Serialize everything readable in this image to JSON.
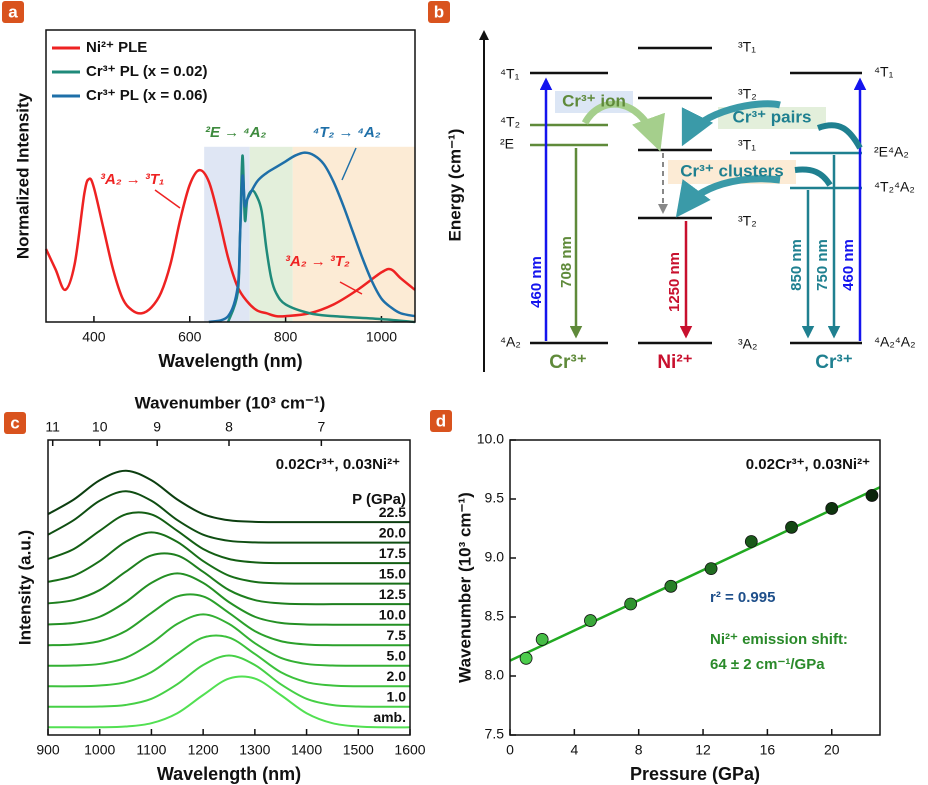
{
  "panels": [
    "a",
    "b",
    "c",
    "d"
  ],
  "chart_data": [
    {
      "type": "line",
      "x_label": "Wavelength (nm)",
      "y_label": "Normalized Intensity",
      "xlim": [
        300,
        1070
      ],
      "ylim": [
        0,
        1
      ],
      "xticks": [
        400,
        600,
        800,
        1000
      ],
      "regions": [
        {
          "x": [
            630,
            725
          ],
          "y": [
            0,
            0.6
          ],
          "color": "#dfe6f4"
        },
        {
          "x": [
            725,
            815
          ],
          "y": [
            0,
            0.6
          ],
          "color": "#e3efdb"
        },
        {
          "x": [
            815,
            1070
          ],
          "y": [
            0,
            0.6
          ],
          "color": "#fcebd5"
        }
      ],
      "series": [
        {
          "name": "Ni²⁺ PLE",
          "color": "#ee2222",
          "x": [
            300,
            320,
            340,
            360,
            380,
            390,
            400,
            420,
            440,
            460,
            480,
            500,
            520,
            540,
            560,
            580,
            600,
            620,
            640,
            660,
            680,
            700,
            720,
            740,
            760,
            780,
            800,
            850,
            900,
            950,
            1000,
            1020,
            1040,
            1070
          ],
          "values": [
            0.25,
            0.18,
            0.11,
            0.2,
            0.44,
            0.49,
            0.46,
            0.32,
            0.18,
            0.08,
            0.04,
            0.03,
            0.05,
            0.1,
            0.2,
            0.35,
            0.47,
            0.52,
            0.48,
            0.36,
            0.22,
            0.12,
            0.07,
            0.04,
            0.03,
            0.02,
            0.02,
            0.03,
            0.06,
            0.11,
            0.17,
            0.18,
            0.15,
            0.11
          ]
        },
        {
          "name": "Cr³⁺ PL (x = 0.02)",
          "color": "#1f8a7a",
          "x": [
            680,
            700,
            705,
            710,
            715,
            720,
            730,
            740,
            750,
            760,
            770,
            780,
            800,
            850,
            900,
            1000,
            1070
          ],
          "values": [
            0,
            0.1,
            0.3,
            0.57,
            0.35,
            0.42,
            0.45,
            0.43,
            0.38,
            0.25,
            0.15,
            0.1,
            0.06,
            0.03,
            0.02,
            0.01,
            0
          ]
        },
        {
          "name": "Cr³⁺ PL (x = 0.06)",
          "color": "#1e6fa8",
          "x": [
            640,
            680,
            700,
            705,
            710,
            715,
            720,
            740,
            760,
            780,
            800,
            820,
            840,
            860,
            880,
            900,
            920,
            940,
            960,
            980,
            1000,
            1020,
            1040,
            1070
          ],
          "values": [
            0,
            0.02,
            0.12,
            0.3,
            0.5,
            0.4,
            0.42,
            0.48,
            0.51,
            0.53,
            0.55,
            0.57,
            0.58,
            0.57,
            0.54,
            0.48,
            0.4,
            0.31,
            0.22,
            0.14,
            0.08,
            0.05,
            0.03,
            0.02
          ]
        }
      ],
      "annotations": [
        "³A₂ → ³T₁",
        "²E → ⁴A₂",
        "⁴T₂ → ⁴A₂",
        "³A₂ → ³T₂"
      ]
    },
    {
      "type": "line",
      "x_label": "Wavelength (nm)",
      "y_label": "Intensity (a.u.)",
      "x2_label": "Wavenumber (10³ cm⁻¹)",
      "annotation": "0.02Cr³⁺, 0.03Ni²⁺",
      "legend_title": "P (GPa)",
      "xlim": [
        900,
        1600
      ],
      "ylim": [
        0,
        11.5
      ],
      "xticks": [
        900,
        1000,
        1100,
        1200,
        1300,
        1400,
        1500,
        1600
      ],
      "x2ticks": [
        11,
        10,
        9,
        8,
        7
      ],
      "x": [
        900,
        950,
        1000,
        1050,
        1100,
        1150,
        1200,
        1250,
        1300,
        1350,
        1400,
        1450,
        1500,
        1550,
        1600
      ],
      "series": [
        {
          "name": "amb.",
          "color": "#52e052",
          "values": [
            0.3,
            0.3,
            0.3,
            0.33,
            0.46,
            0.85,
            1.56,
            2.2,
            2.2,
            1.56,
            0.85,
            0.46,
            0.33,
            0.3,
            0.3
          ]
        },
        {
          "name": "1.0",
          "color": "#46d046",
          "values": [
            1.1,
            1.1,
            1.11,
            1.17,
            1.41,
            1.98,
            2.73,
            3.1,
            2.73,
            1.98,
            1.41,
            1.17,
            1.11,
            1.1,
            1.1
          ]
        },
        {
          "name": "2.0",
          "color": "#3cc13c",
          "values": [
            1.9,
            1.9,
            1.93,
            2.06,
            2.45,
            3.16,
            3.8,
            3.8,
            3.16,
            2.45,
            2.06,
            1.93,
            1.9,
            1.9,
            1.9
          ]
        },
        {
          "name": "5.0",
          "color": "#33b033",
          "values": [
            2.7,
            2.71,
            2.77,
            3.01,
            3.58,
            4.33,
            4.7,
            4.33,
            3.58,
            3.01,
            2.77,
            2.71,
            2.7,
            2.7,
            2.7
          ]
        },
        {
          "name": "7.5",
          "color": "#2ba02b",
          "values": [
            3.5,
            3.53,
            3.66,
            4.05,
            4.76,
            5.4,
            5.4,
            4.76,
            4.05,
            3.66,
            3.53,
            3.5,
            3.5,
            3.5,
            3.5
          ]
        },
        {
          "name": "10.0",
          "color": "#249024",
          "values": [
            4.31,
            4.37,
            4.61,
            5.18,
            5.93,
            6.3,
            5.93,
            5.18,
            4.61,
            4.37,
            4.31,
            4.3,
            4.3,
            4.3,
            4.3
          ]
        },
        {
          "name": "12.5",
          "color": "#1e7f1e",
          "values": [
            5.13,
            5.26,
            5.65,
            6.36,
            7.0,
            7.0,
            6.36,
            5.65,
            5.26,
            5.13,
            5.1,
            5.1,
            5.1,
            5.1,
            5.1
          ]
        },
        {
          "name": "15.0",
          "color": "#186f18",
          "values": [
            5.97,
            6.21,
            6.78,
            7.53,
            7.9,
            7.53,
            6.78,
            6.21,
            5.97,
            5.91,
            5.9,
            5.9,
            5.9,
            5.9,
            5.9
          ]
        },
        {
          "name": "17.5",
          "color": "#135e13",
          "values": [
            6.86,
            7.25,
            7.96,
            8.6,
            8.6,
            7.96,
            7.25,
            6.86,
            6.73,
            6.7,
            6.7,
            6.7,
            6.7,
            6.7,
            6.7
          ]
        },
        {
          "name": "20.0",
          "color": "#0f4e12",
          "values": [
            7.81,
            8.38,
            9.13,
            9.5,
            9.13,
            8.38,
            7.81,
            7.57,
            7.51,
            7.5,
            7.5,
            7.5,
            7.5,
            7.5,
            7.5
          ]
        },
        {
          "name": "22.5",
          "color": "#0c3e10",
          "values": [
            8.61,
            9.18,
            9.93,
            10.3,
            9.93,
            9.18,
            8.61,
            8.37,
            8.31,
            8.3,
            8.3,
            8.3,
            8.3,
            8.3,
            8.3
          ]
        }
      ]
    },
    {
      "type": "scatter",
      "x_label": "Pressure (GPa)",
      "y_label": "Wavenumber (10³ cm⁻¹)",
      "annotations": [
        "0.02Cr³⁺, 0.03Ni²⁺",
        "r² = 0.995",
        "Ni²⁺ emission shift:",
        "64 ± 2 cm⁻¹/GPa"
      ],
      "xlim": [
        0,
        23
      ],
      "ylim": [
        7.5,
        10
      ],
      "xticks": [
        0,
        4,
        8,
        12,
        16,
        20
      ],
      "yticks": [
        7.5,
        {
          "value": 8,
          "label": "8.0"
        },
        8.5,
        {
          "value": 9,
          "label": "9.0"
        },
        9.5,
        {
          "value": 10,
          "label": "10.0"
        }
      ],
      "x": [
        1,
        2,
        5,
        7.5,
        10,
        12.5,
        15,
        17.5,
        20,
        22.5
      ],
      "values": [
        8.15,
        8.31,
        8.47,
        8.61,
        8.76,
        8.91,
        9.14,
        9.26,
        9.42,
        9.53
      ],
      "colors": [
        "#4ccd4c",
        "#45bd45",
        "#3aa83a",
        "#309330",
        "#288028",
        "#206c20",
        "#195a19",
        "#134713",
        "#0e350e",
        "#0a240a"
      ],
      "fit": {
        "x": [
          0,
          23
        ],
        "values": [
          8.13,
          9.6
        ],
        "color": "#22aa22"
      }
    }
  ],
  "diagram": {
    "y_label": "Energy (cm⁻¹)",
    "columns": [
      {
        "ion": "Cr³⁺",
        "levels": [
          "⁴T₁",
          "⁴T₂",
          "²E",
          "⁴A₂"
        ]
      },
      {
        "ion": "Ni²⁺",
        "levels": [
          "³T₁",
          "³T₂",
          "³T₁",
          "³T₂",
          "³A₂"
        ]
      },
      {
        "ion": "Cr³⁺",
        "levels": [
          "⁴T₁",
          "²E⁴A₂",
          "⁴T₂⁴A₂",
          "⁴A₂⁴A₂"
        ]
      }
    ],
    "transitions": [
      "460 nm",
      "708 nm",
      "1250 nm",
      "850 nm",
      "750 nm",
      "460 nm"
    ],
    "labels": [
      "Cr³⁺ ion",
      "Cr³⁺ pairs",
      "Cr³⁺ clusters"
    ]
  }
}
